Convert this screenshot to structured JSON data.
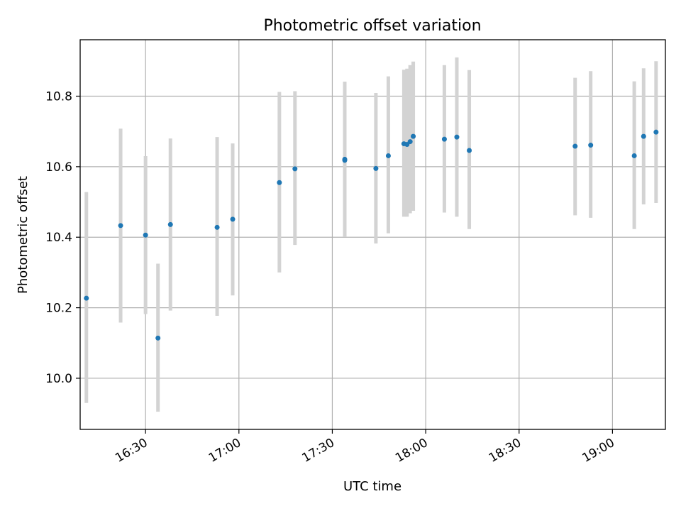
{
  "chart_data": {
    "type": "scatter",
    "title": "Photometric offset variation",
    "xlabel": "UTC time",
    "ylabel": "Photometric offset",
    "x_ticks": [
      "16:30",
      "17:00",
      "17:30",
      "18:00",
      "18:30",
      "19:00"
    ],
    "y_ticks": [
      "10.0",
      "10.2",
      "10.4",
      "10.6",
      "10.8"
    ],
    "xlim": [
      "16:09",
      "19:17"
    ],
    "ylim": [
      9.855,
      10.96
    ],
    "grid": true,
    "colors": {
      "points": "#1f77b4",
      "errorbars": "#d3d3d3",
      "grid": "#b0b0b0"
    },
    "series": [
      {
        "points": [
          {
            "x": "16:11",
            "y": 10.227,
            "ylo": 9.93,
            "yhi": 10.528
          },
          {
            "x": "16:22",
            "y": 10.433,
            "ylo": 10.158,
            "yhi": 10.708
          },
          {
            "x": "16:30",
            "y": 10.406,
            "ylo": 10.182,
            "yhi": 10.63
          },
          {
            "x": "16:34",
            "y": 10.114,
            "ylo": 9.905,
            "yhi": 10.325
          },
          {
            "x": "16:38",
            "y": 10.436,
            "ylo": 10.192,
            "yhi": 10.68
          },
          {
            "x": "16:53",
            "y": 10.428,
            "ylo": 10.177,
            "yhi": 10.684
          },
          {
            "x": "16:58",
            "y": 10.451,
            "ylo": 10.235,
            "yhi": 10.666
          },
          {
            "x": "17:13",
            "y": 10.555,
            "ylo": 10.3,
            "yhi": 10.812
          },
          {
            "x": "17:18",
            "y": 10.594,
            "ylo": 10.378,
            "yhi": 10.814
          },
          {
            "x": "17:34",
            "y": 10.621,
            "ylo": 10.402,
            "yhi": 10.841
          },
          {
            "x": "17:34",
            "y": 10.618,
            "ylo": 10.402,
            "yhi": 10.841
          },
          {
            "x": "17:44",
            "y": 10.595,
            "ylo": 10.382,
            "yhi": 10.809
          },
          {
            "x": "17:48",
            "y": 10.631,
            "ylo": 10.411,
            "yhi": 10.856
          },
          {
            "x": "17:53",
            "y": 10.665,
            "ylo": 10.458,
            "yhi": 10.875
          },
          {
            "x": "17:54",
            "y": 10.663,
            "ylo": 10.458,
            "yhi": 10.878
          },
          {
            "x": "17:55",
            "y": 10.671,
            "ylo": 10.468,
            "yhi": 10.888
          },
          {
            "x": "17:56",
            "y": 10.686,
            "ylo": 10.475,
            "yhi": 10.898
          },
          {
            "x": "18:06",
            "y": 10.678,
            "ylo": 10.47,
            "yhi": 10.888
          },
          {
            "x": "18:10",
            "y": 10.684,
            "ylo": 10.458,
            "yhi": 10.91
          },
          {
            "x": "18:14",
            "y": 10.646,
            "ylo": 10.423,
            "yhi": 10.874
          },
          {
            "x": "18:48",
            "y": 10.658,
            "ylo": 10.462,
            "yhi": 10.852
          },
          {
            "x": "18:53",
            "y": 10.661,
            "ylo": 10.455,
            "yhi": 10.871
          },
          {
            "x": "19:07",
            "y": 10.631,
            "ylo": 10.423,
            "yhi": 10.842
          },
          {
            "x": "19:10",
            "y": 10.686,
            "ylo": 10.493,
            "yhi": 10.879
          },
          {
            "x": "19:14",
            "y": 10.698,
            "ylo": 10.497,
            "yhi": 10.899
          }
        ]
      }
    ]
  }
}
